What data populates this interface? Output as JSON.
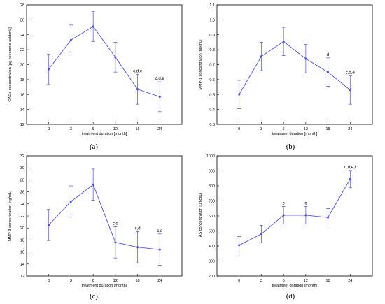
{
  "chart_data": [
    {
      "panel_label": "(a)",
      "type": "line",
      "categories": [
        "0",
        "3",
        "6",
        "12",
        "18",
        "24"
      ],
      "values": [
        19.4,
        23.3,
        25.1,
        21.0,
        16.7,
        15.7
      ],
      "error": [
        2.0,
        2.0,
        2.0,
        2.0,
        2.0,
        2.0
      ],
      "annotations": [
        "",
        "",
        "",
        "",
        "c,d,e",
        "c,d,e"
      ],
      "xlabel": "treatment duration [month]",
      "ylabel": "GAGs concentration [µg hexuronic acid/mL]",
      "ylim": [
        12,
        28
      ],
      "yticks": [
        "12",
        "14",
        "16",
        "18",
        "20",
        "22",
        "24",
        "26",
        "28"
      ],
      "grid": false
    },
    {
      "panel_label": "(b)",
      "type": "line",
      "categories": [
        "0",
        "3",
        "6",
        "12",
        "18",
        "24"
      ],
      "values": [
        0.5,
        0.755,
        0.855,
        0.74,
        0.65,
        0.53
      ],
      "error": [
        0.095,
        0.095,
        0.095,
        0.095,
        0.095,
        0.095
      ],
      "annotations": [
        "",
        "",
        "",
        "",
        "d",
        "c,d,e"
      ],
      "xlabel": "treatment duration [month]",
      "ylabel": "MMP-1 concentration [ng/mL]",
      "ylim": [
        0.3,
        1.1
      ],
      "yticks": [
        "0.3",
        "0.4",
        "0.5",
        "0.6",
        "0.7",
        "0.8",
        "0.9",
        "1.0",
        "1.1"
      ],
      "grid": false
    },
    {
      "panel_label": "(c)",
      "type": "line",
      "categories": [
        "0",
        "3",
        "6",
        "12",
        "18",
        "24"
      ],
      "values": [
        20.5,
        24.4,
        27.2,
        17.6,
        16.8,
        16.4
      ],
      "error": [
        2.6,
        2.6,
        2.6,
        2.6,
        2.6,
        2.6
      ],
      "annotations": [
        "",
        "",
        "",
        "c,d",
        "c,d",
        "c,d"
      ],
      "xlabel": "treatment duration [month]",
      "ylabel": "MMP-3 concentration [ng/mL]",
      "ylim": [
        12,
        32
      ],
      "yticks": [
        "12",
        "14",
        "16",
        "18",
        "20",
        "22",
        "24",
        "26",
        "28",
        "30",
        "32"
      ],
      "grid": false
    },
    {
      "panel_label": "(d)",
      "type": "line",
      "categories": [
        "0",
        "3",
        "6",
        "12",
        "18",
        "24"
      ],
      "values": [
        405,
        480,
        605,
        605,
        590,
        845
      ],
      "error": [
        58,
        58,
        58,
        58,
        58,
        58
      ],
      "annotations": [
        "",
        "",
        "c",
        "c",
        "",
        "c,d,e,f"
      ],
      "xlabel": "treatment duration [month]",
      "ylabel": "TAS concentration [µmol/L]",
      "ylim": [
        200,
        1000
      ],
      "yticks": [
        "200",
        "300",
        "400",
        "500",
        "600",
        "700",
        "800",
        "900",
        "1000"
      ],
      "grid": false
    }
  ],
  "style": {
    "series_color": "#4a4aff",
    "axis_color": "#000000"
  }
}
